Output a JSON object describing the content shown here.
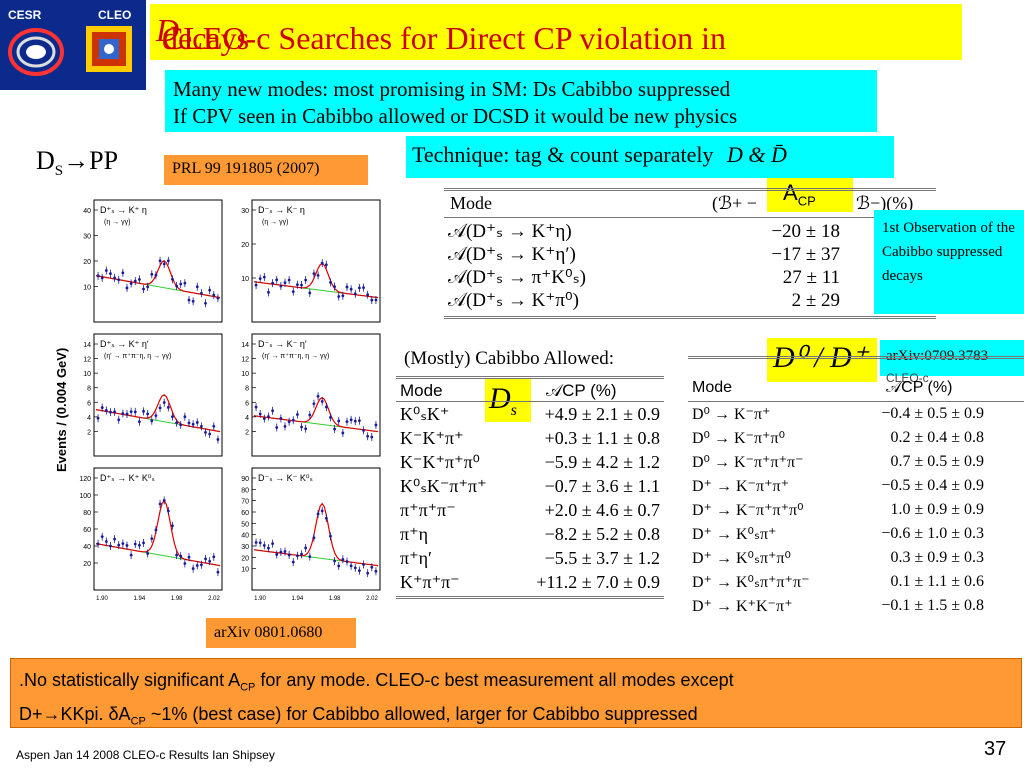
{
  "logo": {
    "cesr": "CESR",
    "cleo": "CLEO"
  },
  "title": "CLEO-c Searches for Direct CP violation in D decays",
  "title_main": "CLEO-c Searches for Direct CP violation in ",
  "title_d": "D",
  "title_end": " decays",
  "intro": {
    "line1": "Many new modes: most promising in SM: Ds Cabibbo suppressed",
    "line2": "If CPV seen in Cabibbo allowed or DCSD it would be new physics"
  },
  "technique": "Technique: tag & count separately",
  "technique_math": "D & D̄",
  "ds_pp": "DS→PP",
  "ds_pp_main": "D",
  "ds_pp_sub": "S",
  "ds_pp_end": "→PP",
  "prl": "PRL 99 191805 (2007)",
  "acp_label": "A",
  "acp_sub": "CP",
  "ds_table": {
    "header_mode": "Mode",
    "header_val": "(ℬ+ − ℬ−)(%)",
    "header_right": "ℬ−)(%)",
    "header_left": "(ℬ+ −",
    "rows": [
      {
        "mode": "𝒜(D⁺ₛ → K⁺η)",
        "val": "−20 ± 18"
      },
      {
        "mode": "𝒜(D⁺ₛ → K⁺η′)",
        "val": "−17 ± 37"
      },
      {
        "mode": "𝒜(D⁺ₛ → π⁺K⁰ₛ)",
        "val": "27 ± 11"
      },
      {
        "mode": "𝒜(D⁺ₛ → K⁺π⁰)",
        "val": "2 ± 29"
      }
    ]
  },
  "first_obs": "1st Observation of the Cabibbo suppressed decays",
  "mostly_ca": "(Mostly) Cabibbo Allowed:",
  "ds_badge": "D",
  "ds_badge_sub": "s",
  "ds_ca_table": {
    "header_mode": "Mode",
    "header_val": "𝒜CP (%)",
    "rows": [
      {
        "mode": "K⁰ₛK⁺",
        "val": "+4.9 ± 2.1 ± 0.9"
      },
      {
        "mode": "K⁻K⁺π⁺",
        "val": "+0.3 ± 1.1 ± 0.8"
      },
      {
        "mode": "K⁻K⁺π⁺π⁰",
        "val": "−5.9 ± 4.2 ± 1.2"
      },
      {
        "mode": "K⁰ₛK⁻π⁺π⁺",
        "val": "−0.7 ± 3.6 ± 1.1"
      },
      {
        "mode": "π⁺π⁺π⁻",
        "val": "+2.0 ± 4.6 ± 0.7"
      },
      {
        "mode": "π⁺η",
        "val": "−8.2 ± 5.2 ± 0.8"
      },
      {
        "mode": "π⁺η′",
        "val": "−5.5 ± 3.7 ± 1.2"
      },
      {
        "mode": "K⁺π⁺π⁻",
        "val": "+11.2 ± 7.0 ± 0.9"
      }
    ]
  },
  "d0dp_badge": "D⁰ / D⁺",
  "arxiv_right": "arXiv:0709.3783",
  "cleo_c_small": "CLEO-c",
  "d_table": {
    "header_mode": "Mode",
    "header_val": "𝒜CP (%)",
    "rows": [
      {
        "mode": "D⁰ → K⁻π⁺",
        "val": "−0.4 ± 0.5 ± 0.9"
      },
      {
        "mode": "D⁰ → K⁻π⁺π⁰",
        "val": "0.2 ± 0.4 ± 0.8"
      },
      {
        "mode": "D⁰ → K⁻π⁺π⁺π⁻",
        "val": "0.7 ± 0.5 ± 0.9"
      },
      {
        "mode": "D⁺ → K⁻π⁺π⁺",
        "val": "−0.5 ± 0.4 ± 0.9"
      },
      {
        "mode": "D⁺ → K⁻π⁺π⁺π⁰",
        "val": "1.0 ± 0.9 ± 0.9"
      },
      {
        "mode": "D⁺ → K⁰ₛπ⁺",
        "val": "−0.6 ± 1.0 ± 0.3"
      },
      {
        "mode": "D⁺ → K⁰ₛπ⁺π⁰",
        "val": "0.3 ± 0.9 ± 0.3"
      },
      {
        "mode": "D⁺ → K⁰ₛπ⁺π⁺π⁻",
        "val": "0.1 ± 1.1 ± 0.6"
      },
      {
        "mode": "D⁺ → K⁺K⁻π⁺",
        "val": "−0.1 ± 1.5 ± 0.8"
      }
    ]
  },
  "plots": {
    "ylabel": "Events / (0.004 GeV)",
    "xticks": [
      "1.90",
      "1.94",
      "1.98",
      "2.02"
    ],
    "panels": [
      {
        "title": "D⁺ₛ → K⁺ η",
        "sub": "(η → γγ)",
        "yticks": [
          "40",
          "30",
          "20",
          "10"
        ]
      },
      {
        "title": "D⁻ₛ → K⁻ η",
        "sub": "(η → γγ)",
        "yticks": [
          "30",
          "20",
          "10"
        ]
      },
      {
        "title": "D⁺ₛ → K⁺ η′",
        "sub": "(η′ → π⁺π⁻η, η → γγ)",
        "yticks": [
          "14",
          "12",
          "10",
          "8",
          "6",
          "4",
          "2"
        ]
      },
      {
        "title": "D⁻ₛ → K⁻ η′",
        "sub": "(η′ → π⁺π⁻η, η → γγ)",
        "yticks": [
          "14",
          "12",
          "10",
          "8",
          "6",
          "4",
          "2"
        ]
      },
      {
        "title": "D⁺ₛ → K⁺ K⁰ₛ",
        "sub": "",
        "yticks": [
          "120",
          "100",
          "80",
          "60",
          "40",
          "20"
        ]
      },
      {
        "title": "D⁻ₛ → K⁻ K⁰ₛ",
        "sub": "",
        "yticks": [
          "90",
          "80",
          "70",
          "60",
          "50",
          "40",
          "30",
          "20",
          "10"
        ]
      }
    ]
  },
  "arxiv_bottom": "arXiv 0801.0680",
  "conclusion": {
    "line1_a": ".No statistically significant A",
    "line1_sub": "CP",
    "line1_b": "  for any mode.  CLEO-c best measurement all modes except",
    "line2_a": "D+",
    "line2_arrow": "→",
    "line2_b": "KKpi. δA",
    "line2_sub": "CP",
    "line2_c": " ~1% (best case) for Cabibbo allowed, larger for Cabibbo suppressed"
  },
  "footer": "Aspen  Jan 14 2008  CLEO-c Results  Ian Shipsey",
  "page_number": "37",
  "colors": {
    "title_red": "#cc0000",
    "yellow": "#ffff00",
    "cyan": "#00ffff",
    "orange": "#ff9933",
    "logo_blue": "#0b2a8c"
  }
}
